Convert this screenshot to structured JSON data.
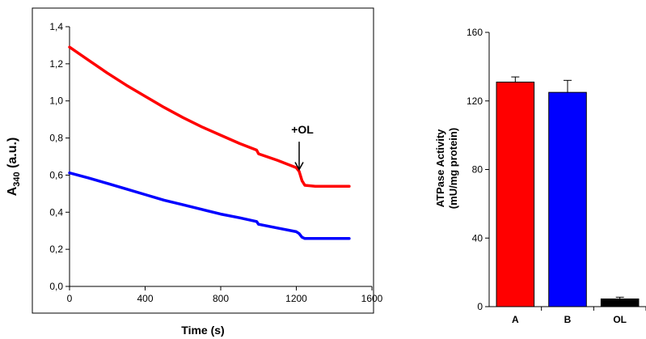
{
  "colors": {
    "red": "#ff0000",
    "blue": "#0000ff",
    "black": "#000000"
  },
  "chart_data": [
    {
      "type": "line",
      "xlabel": "Time (s)",
      "ylabel_main": "A",
      "ylabel_sub": "340",
      "ylabel_unit": " (a.u.)",
      "xlim": [
        0,
        1600
      ],
      "ylim": [
        0.0,
        1.4
      ],
      "xticks": [
        {
          "value": 0,
          "label": "0"
        },
        {
          "value": 400,
          "label": "400"
        },
        {
          "value": 800,
          "label": "800"
        },
        {
          "value": 1200,
          "label": "1200"
        },
        {
          "value": 1600,
          "label": "1600"
        }
      ],
      "yticks": [
        {
          "value": 0.0,
          "label": "0,0"
        },
        {
          "value": 0.2,
          "label": "0,2"
        },
        {
          "value": 0.4,
          "label": "0,4"
        },
        {
          "value": 0.6,
          "label": "0,6"
        },
        {
          "value": 0.8,
          "label": "0,8"
        },
        {
          "value": 1.0,
          "label": "1,0"
        },
        {
          "value": 1.2,
          "label": "1,2"
        },
        {
          "value": 1.4,
          "label": "1,4"
        }
      ],
      "grid": false,
      "annotation": {
        "text": "+OL",
        "x": 1215,
        "y_from": 0.78,
        "y_to": 0.63
      },
      "series": [
        {
          "color": "#ff0000",
          "x": [
            0,
            100,
            200,
            300,
            400,
            500,
            600,
            700,
            800,
            900,
            990,
            1000,
            1100,
            1200,
            1215,
            1230,
            1245,
            1300,
            1400,
            1480
          ],
          "y": [
            1.29,
            1.22,
            1.15,
            1.085,
            1.025,
            0.965,
            0.91,
            0.86,
            0.815,
            0.77,
            0.735,
            0.715,
            0.68,
            0.64,
            0.62,
            0.57,
            0.545,
            0.54,
            0.54,
            0.54
          ]
        },
        {
          "color": "#0000ff",
          "x": [
            0,
            100,
            200,
            300,
            400,
            500,
            600,
            700,
            800,
            900,
            990,
            1000,
            1100,
            1200,
            1215,
            1230,
            1245,
            1300,
            1400,
            1480
          ],
          "y": [
            0.612,
            0.585,
            0.555,
            0.525,
            0.495,
            0.465,
            0.44,
            0.415,
            0.39,
            0.37,
            0.35,
            0.335,
            0.315,
            0.295,
            0.285,
            0.265,
            0.258,
            0.258,
            0.258,
            0.258
          ]
        }
      ]
    },
    {
      "type": "bar",
      "ylabel_line1": "ATPase Activity",
      "ylabel_line2": "(mU/mg protein)",
      "ylim": [
        0,
        160
      ],
      "yticks": [
        {
          "value": 0,
          "label": "0"
        },
        {
          "value": 40,
          "label": "40"
        },
        {
          "value": 80,
          "label": "80"
        },
        {
          "value": 120,
          "label": "120"
        },
        {
          "value": 160,
          "label": "160"
        }
      ],
      "grid": false,
      "categories": [
        "A",
        "B",
        "OL"
      ],
      "values": [
        131,
        125,
        4.5
      ],
      "errors": [
        3,
        7,
        1
      ],
      "colors": [
        "#ff0000",
        "#0000ff",
        "#000000"
      ]
    }
  ]
}
